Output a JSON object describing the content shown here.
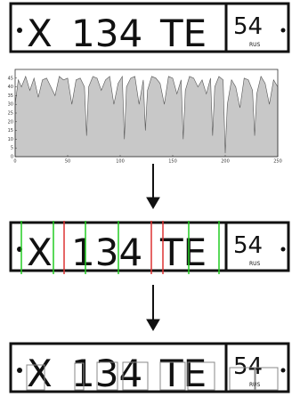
{
  "plate": {
    "letter": "X",
    "digits": "134",
    "series": "TE",
    "region": "54",
    "country": "RUS"
  },
  "chart_data": {
    "type": "area",
    "color": "#c8c8c8",
    "x": [
      0,
      3,
      6,
      10,
      14,
      18,
      22,
      26,
      30,
      34,
      38,
      42,
      46,
      50,
      54,
      58,
      62,
      66,
      68,
      70,
      74,
      78,
      82,
      86,
      90,
      94,
      98,
      102,
      104,
      106,
      110,
      114,
      118,
      122,
      124,
      126,
      130,
      134,
      138,
      142,
      146,
      150,
      154,
      158,
      160,
      162,
      166,
      170,
      174,
      178,
      182,
      186,
      188,
      190,
      194,
      198,
      200,
      202,
      206,
      210,
      214,
      218,
      222,
      226,
      228,
      230,
      234,
      238,
      242,
      246,
      250
    ],
    "values": [
      30,
      44,
      40,
      46,
      38,
      45,
      34,
      44,
      45,
      40,
      35,
      46,
      44,
      45,
      30,
      44,
      45,
      40,
      12,
      40,
      46,
      45,
      38,
      44,
      46,
      30,
      42,
      46,
      10,
      40,
      45,
      46,
      30,
      44,
      15,
      38,
      46,
      45,
      42,
      30,
      46,
      45,
      36,
      44,
      10,
      38,
      46,
      45,
      40,
      44,
      36,
      45,
      12,
      40,
      46,
      44,
      2,
      30,
      44,
      40,
      28,
      45,
      44,
      38,
      12,
      36,
      46,
      42,
      30,
      44,
      40
    ],
    "xlim": [
      0,
      250
    ],
    "ylim": [
      0,
      50
    ],
    "xticks": [
      0,
      50,
      100,
      150,
      200,
      250
    ],
    "yticks": [
      0,
      5,
      10,
      15,
      20,
      25,
      30,
      35,
      40,
      45
    ]
  }
}
